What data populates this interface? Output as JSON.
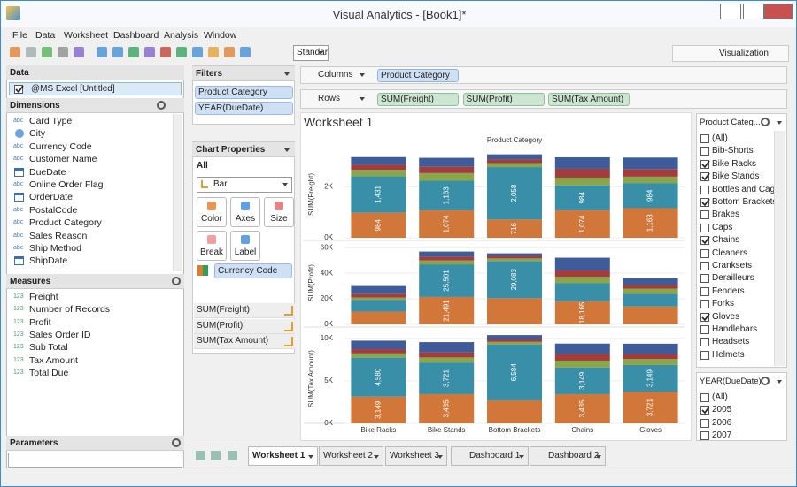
{
  "window": {
    "title": "Visual Analytics - [Book1]*"
  },
  "menu": [
    "File",
    "Data",
    "Worksheet",
    "Dashboard",
    "Analysis",
    "Window"
  ],
  "toolbar": {
    "view": "Standard",
    "visualization": "Visualization"
  },
  "data_panel": {
    "title": "Data",
    "source": "@MS Excel [Untitled]",
    "dimensions_title": "Dimensions",
    "dimensions": [
      {
        "icon": "abc",
        "name": "Card Type"
      },
      {
        "kind": "geo",
        "name": "City"
      },
      {
        "icon": "abc",
        "name": "Currency Code"
      },
      {
        "icon": "abc",
        "name": "Customer Name"
      },
      {
        "kind": "date",
        "name": "DueDate"
      },
      {
        "icon": "abc",
        "name": "Online Order Flag"
      },
      {
        "kind": "date",
        "name": "OrderDate"
      },
      {
        "icon": "abc",
        "name": "PostalCode"
      },
      {
        "icon": "abc",
        "name": "Product Category"
      },
      {
        "icon": "abc",
        "name": "Sales Reason"
      },
      {
        "icon": "abc",
        "name": "Ship Method"
      },
      {
        "kind": "date",
        "name": "ShipDate"
      }
    ],
    "measures_title": "Measures",
    "measures": [
      {
        "icon": "123",
        "name": "Freight"
      },
      {
        "icon": "123",
        "name": "Number of Records"
      },
      {
        "icon": "123",
        "name": "Profit"
      },
      {
        "icon": "123",
        "name": "Sales Order ID"
      },
      {
        "icon": "123",
        "name": "Sub Total"
      },
      {
        "icon": "123",
        "name": "Tax Amount"
      },
      {
        "icon": "123",
        "name": "Total Due"
      }
    ],
    "parameters_title": "Parameters"
  },
  "filters": {
    "title": "Filters",
    "items": [
      "Product Category",
      "YEAR(DueDate)"
    ]
  },
  "chart_properties": {
    "title": "Chart Properties",
    "scope": "All",
    "mark_type": "Bar",
    "buttons": [
      "Color",
      "Axes",
      "Size",
      "Break",
      "Label"
    ],
    "color_field": "Currency Code",
    "measures": [
      "SUM(Freight)",
      "SUM(Profit)",
      "SUM(Tax Amount)"
    ]
  },
  "shelves": {
    "columns_label": "Columns",
    "columns": [
      "Product Category"
    ],
    "rows_label": "Rows",
    "rows": [
      "SUM(Freight)",
      "SUM(Profit)",
      "SUM(Tax Amount)"
    ]
  },
  "worksheet_title": "Worksheet 1",
  "chart_data": {
    "type": "bar",
    "stacked": true,
    "column_header": "Product Category",
    "categories": [
      "Bike Racks",
      "Bike Stands",
      "Bottom Brackets",
      "Chains",
      "Gloves"
    ],
    "panels": [
      {
        "ylabel": "SUM(Freight)",
        "ylim": [
          0,
          3400
        ],
        "yticks": [
          {
            "value": 0,
            "label": "0K"
          },
          {
            "value": 2000,
            "label": "2K"
          }
        ],
        "series": [
          {
            "color": "#d2773a",
            "values": [
              984,
              1074,
              716,
              1074,
              1163
            ],
            "value_labels": [
              "984",
              "1,074",
              "716",
              "1,074",
              "1,163"
            ]
          },
          {
            "color": "#3a8fa8",
            "values": [
              1431,
              1163,
              2058,
              984,
              984
            ],
            "value_labels": [
              "1,431",
              "1,163",
              "2,058",
              "984",
              "984"
            ]
          },
          {
            "color": "#8aa54a",
            "values": [
              250,
              300,
              150,
              300,
              250
            ]
          },
          {
            "color": "#a33c3c",
            "values": [
              200,
              250,
              150,
              350,
              300
            ]
          },
          {
            "color": "#3e5c9a",
            "values": [
              300,
              350,
              200,
              450,
              450
            ]
          }
        ]
      },
      {
        "ylabel": "SUM(Profit)",
        "ylim": [
          0,
          65000
        ],
        "yticks": [
          {
            "value": 0,
            "label": "0K"
          },
          {
            "value": 20000,
            "label": "20K"
          },
          {
            "value": 40000,
            "label": "40K"
          },
          {
            "value": 60000,
            "label": "60K"
          }
        ],
        "series": [
          {
            "color": "#d2773a",
            "values": [
              10000,
              21491,
              20500,
              18165,
              14000
            ],
            "value_labels": [
              null,
              "21,491",
              null,
              "18,165",
              null
            ]
          },
          {
            "color": "#3a8fa8",
            "values": [
              9000,
              25501,
              29083,
              14000,
              10000
            ],
            "value_labels": [
              null,
              "25,501",
              "29,083",
              null,
              null
            ]
          },
          {
            "color": "#8aa54a",
            "values": [
              2000,
              3000,
              2000,
              5000,
              4000
            ]
          },
          {
            "color": "#a33c3c",
            "values": [
              3000,
              3000,
              2000,
              5000,
              3000
            ]
          },
          {
            "color": "#3e5c9a",
            "values": [
              6000,
              4000,
              2000,
              10000,
              5000
            ]
          }
        ]
      },
      {
        "ylabel": "SUM(Tax Amount)",
        "ylim": [
          0,
          10500
        ],
        "yticks": [
          {
            "value": 0,
            "label": "0K"
          },
          {
            "value": 5000,
            "label": "5K"
          },
          {
            "value": 10000,
            "label": "10K"
          }
        ],
        "series": [
          {
            "color": "#d2773a",
            "values": [
              3149,
              3435,
              2700,
              3435,
              3721
            ],
            "value_labels": [
              "3,149",
              "3,435",
              null,
              "3,435",
              "3,721"
            ]
          },
          {
            "color": "#3a8fa8",
            "values": [
              4580,
              3721,
              6584,
              3149,
              3149
            ],
            "value_labels": [
              "4,580",
              "3,721",
              "6,584",
              "3,149",
              "3,149"
            ]
          },
          {
            "color": "#8aa54a",
            "values": [
              500,
              600,
              300,
              800,
              700
            ]
          },
          {
            "color": "#a33c3c",
            "values": [
              500,
              600,
              300,
              800,
              600
            ]
          },
          {
            "color": "#3e5c9a",
            "values": [
              1000,
              1200,
              500,
              1200,
              1200
            ]
          }
        ]
      }
    ]
  },
  "product_filter": {
    "title": "Product Categ...",
    "items": [
      {
        "label": "(All)",
        "checked": false
      },
      {
        "label": "Bib-Shorts",
        "checked": false
      },
      {
        "label": "Bike Racks",
        "checked": true
      },
      {
        "label": "Bike Stands",
        "checked": true
      },
      {
        "label": "Bottles and Cages",
        "checked": false
      },
      {
        "label": "Bottom Brackets",
        "checked": true
      },
      {
        "label": "Brakes",
        "checked": false
      },
      {
        "label": "Caps",
        "checked": false
      },
      {
        "label": "Chains",
        "checked": true
      },
      {
        "label": "Cleaners",
        "checked": false
      },
      {
        "label": "Cranksets",
        "checked": false
      },
      {
        "label": "Derailleurs",
        "checked": false
      },
      {
        "label": "Fenders",
        "checked": false
      },
      {
        "label": "Forks",
        "checked": false
      },
      {
        "label": "Gloves",
        "checked": true
      },
      {
        "label": "Handlebars",
        "checked": false
      },
      {
        "label": "Headsets",
        "checked": false
      },
      {
        "label": "Helmets",
        "checked": false
      }
    ]
  },
  "year_filter": {
    "title": "YEAR(DueDate)",
    "items": [
      {
        "label": "(All)",
        "checked": false
      },
      {
        "label": "2005",
        "checked": true
      },
      {
        "label": "2006",
        "checked": false
      },
      {
        "label": "2007",
        "checked": false
      }
    ]
  },
  "tabs": {
    "active": 0,
    "items": [
      "Worksheet 1",
      "Worksheet 2",
      "Worksheet 3",
      "Dashboard 1",
      "Dashboard 2"
    ]
  }
}
